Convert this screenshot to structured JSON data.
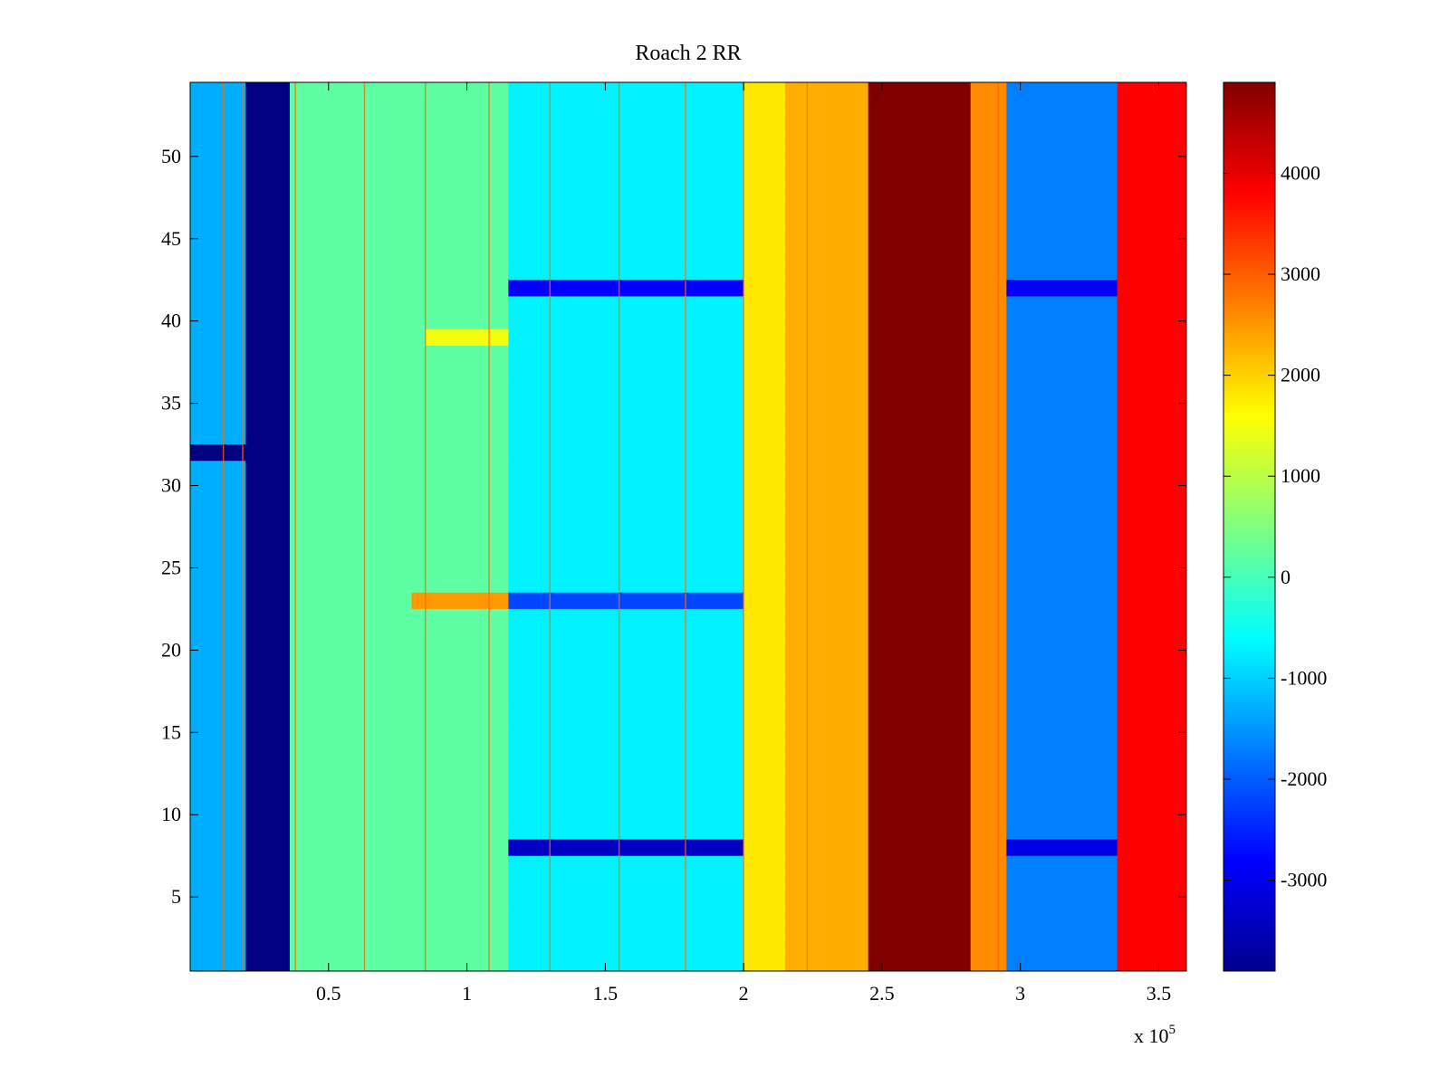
{
  "chart_data": {
    "type": "heatmap",
    "title": "Roach 2 RR",
    "xlabel": "",
    "ylabel": "",
    "x_exponent_label": "x 10",
    "x_exponent_power": "5",
    "xlim": [
      0,
      3.6
    ],
    "ylim": [
      0.5,
      54.5
    ],
    "x_tick_values": [
      0.5,
      1,
      1.5,
      2,
      2.5,
      3,
      3.5
    ],
    "x_tick_labels": [
      "0.5",
      "1",
      "1.5",
      "2",
      "2.5",
      "3",
      "3.5"
    ],
    "y_tick_values": [
      5,
      10,
      15,
      20,
      25,
      30,
      35,
      40,
      45,
      50
    ],
    "y_tick_labels": [
      "5",
      "10",
      "15",
      "20",
      "25",
      "30",
      "35",
      "40",
      "45",
      "50"
    ],
    "rows": 54,
    "colormap": "jet",
    "clim": [
      -3900,
      4900
    ],
    "colorbar_tick_values": [
      4000,
      3000,
      2000,
      1000,
      0,
      -1000,
      -2000,
      -3000
    ],
    "colorbar_tick_labels": [
      "4000",
      "3000",
      "2000",
      "1000",
      "0",
      "-1000",
      "-2000",
      "-3000"
    ],
    "column_profile": [
      {
        "x_start": 0.0,
        "x_end": 0.2,
        "value": -1300
      },
      {
        "x_start": 0.2,
        "x_end": 0.36,
        "value": -3900
      },
      {
        "x_start": 0.36,
        "x_end": 1.15,
        "value": 200
      },
      {
        "x_start": 1.15,
        "x_end": 2.0,
        "value": -700
      },
      {
        "x_start": 2.0,
        "x_end": 2.15,
        "value": 1800
      },
      {
        "x_start": 2.15,
        "x_end": 2.45,
        "value": 2300
      },
      {
        "x_start": 2.45,
        "x_end": 2.82,
        "value": 4900
      },
      {
        "x_start": 2.82,
        "x_end": 2.95,
        "value": 2600
      },
      {
        "x_start": 2.95,
        "x_end": 3.35,
        "value": -1700
      },
      {
        "x_start": 3.35,
        "x_end": 3.6,
        "value": 3800
      }
    ],
    "row_features": [
      {
        "y_start": 31.5,
        "y_end": 32.5,
        "x_start": 0.0,
        "x_end": 0.36,
        "value": -3900
      },
      {
        "y_start": 41.5,
        "y_end": 42.5,
        "x_start": 1.15,
        "x_end": 2.0,
        "value": -2800
      },
      {
        "y_start": 41.5,
        "y_end": 42.5,
        "x_start": 2.95,
        "x_end": 3.35,
        "value": -2900
      },
      {
        "y_start": 22.5,
        "y_end": 23.5,
        "x_start": 0.8,
        "x_end": 1.15,
        "value": 2500
      },
      {
        "y_start": 22.5,
        "y_end": 23.5,
        "x_start": 1.15,
        "x_end": 2.0,
        "value": -2200
      },
      {
        "y_start": 7.5,
        "y_end": 8.5,
        "x_start": 1.15,
        "x_end": 2.0,
        "value": -3300
      },
      {
        "y_start": 7.5,
        "y_end": 8.5,
        "x_start": 2.95,
        "x_end": 3.35,
        "value": -3000
      },
      {
        "y_start": 38.5,
        "y_end": 39.5,
        "x_start": 0.85,
        "x_end": 1.15,
        "value": 1500
      }
    ],
    "spike_lines_x": [
      0.12,
      0.19,
      0.38,
      0.63,
      0.85,
      1.08,
      1.3,
      1.55,
      1.79,
      2.0,
      2.23,
      2.92
    ]
  }
}
